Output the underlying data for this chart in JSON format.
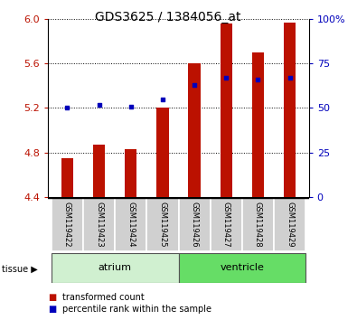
{
  "title": "GDS3625 / 1384056_at",
  "samples": [
    "GSM119422",
    "GSM119423",
    "GSM119424",
    "GSM119425",
    "GSM119426",
    "GSM119427",
    "GSM119428",
    "GSM119429"
  ],
  "red_values": [
    4.75,
    4.87,
    4.83,
    5.2,
    5.6,
    5.96,
    5.7,
    5.97
  ],
  "red_base": 4.4,
  "blue_percentiles": [
    50,
    52,
    51,
    55,
    63,
    67,
    66,
    67
  ],
  "ylim_left": [
    4.4,
    6.0
  ],
  "ylim_right": [
    0,
    100
  ],
  "yticks_left": [
    4.4,
    4.8,
    5.2,
    5.6,
    6.0
  ],
  "yticks_right": [
    0,
    25,
    50,
    75,
    100
  ],
  "ytick_labels_right": [
    "0",
    "25",
    "50",
    "75",
    "100%"
  ],
  "groups": [
    {
      "label": "atrium",
      "start": 0,
      "end": 4,
      "color": "#d0f0d0"
    },
    {
      "label": "ventricle",
      "start": 4,
      "end": 8,
      "color": "#66dd66"
    }
  ],
  "bar_color": "#bb1100",
  "blue_color": "#0000bb",
  "tissue_label": "tissue",
  "legend_items": [
    {
      "label": "transformed count",
      "color": "#bb1100"
    },
    {
      "label": "percentile rank within the sample",
      "color": "#0000bb"
    }
  ],
  "title_fontsize": 10,
  "tick_fontsize": 8,
  "sample_fontsize": 6,
  "group_fontsize": 8,
  "legend_fontsize": 7
}
